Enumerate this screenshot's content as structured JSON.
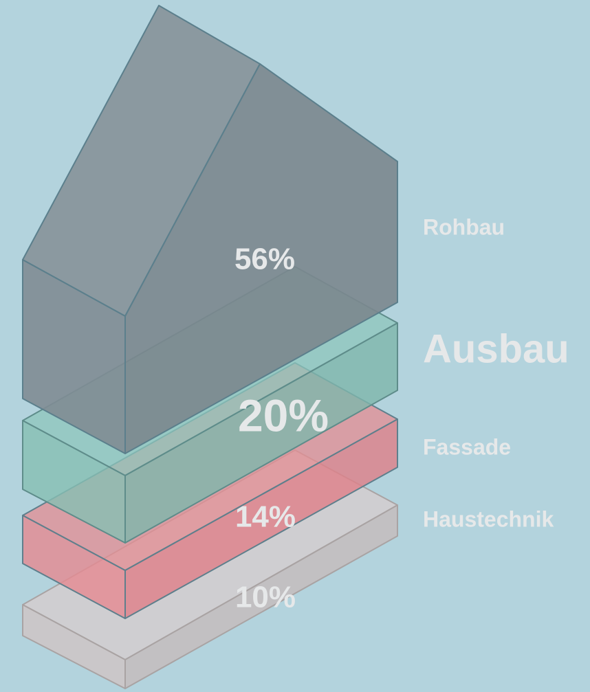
{
  "layers": [
    {
      "label": "Rohbau",
      "percent": "56%"
    },
    {
      "label": "Ausbau",
      "percent": "20%"
    },
    {
      "label": "Fassade",
      "percent": "14%"
    },
    {
      "label": "Haustechnik",
      "percent": "10%"
    }
  ]
}
